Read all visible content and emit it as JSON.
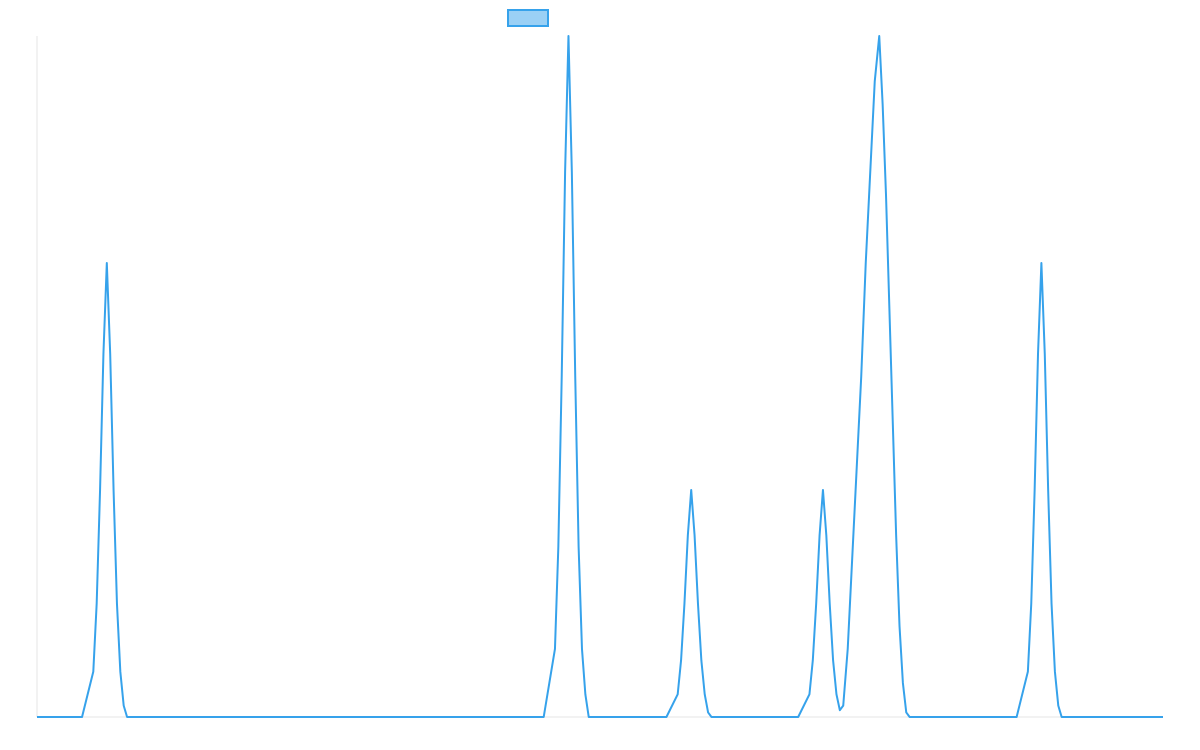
{
  "chart_data": {
    "type": "line",
    "title": "",
    "xlabel": "",
    "ylabel": "",
    "legend": {
      "placement": "top-center",
      "entries": [
        {
          "name": "",
          "color": "#36a2eb",
          "fill": "#9ad0f5"
        }
      ]
    },
    "grid": false,
    "xlim": [
      0,
      100
    ],
    "ylim": [
      0,
      3
    ],
    "series": [
      {
        "name": "",
        "color": "#36a2eb",
        "x": [
          0,
          4,
          5,
          5.3,
          5.6,
          5.9,
          6.2,
          6.5,
          6.8,
          7.1,
          7.4,
          7.7,
          8,
          9,
          45,
          46,
          46.3,
          46.6,
          46.9,
          47.2,
          47.5,
          47.8,
          48.1,
          48.4,
          48.7,
          49,
          50,
          55.9,
          56.9,
          57.2,
          57.5,
          57.8,
          58.1,
          58.4,
          58.7,
          59,
          59.3,
          59.6,
          59.9,
          60.9,
          67.6,
          68.6,
          68.9,
          69.2,
          69.5,
          69.8,
          70.1,
          70.4,
          70.7,
          71,
          71.3,
          71.6,
          72,
          72.4,
          72.8,
          73.2,
          73.6,
          74,
          74.4,
          74.8,
          75.1,
          75.4,
          75.7,
          76,
          76.3,
          76.6,
          76.9,
          77.2,
          77.5,
          77.8,
          78.1,
          78.4,
          78.8,
          79.2,
          79.6,
          80.6,
          87,
          88,
          88.3,
          88.6,
          88.9,
          89.2,
          89.5,
          89.8,
          90.1,
          90.4,
          90.7,
          91,
          92,
          100
        ],
        "values": [
          0,
          0,
          0.2,
          0.5,
          1,
          1.6,
          2,
          1.6,
          1,
          0.5,
          0.2,
          0.05,
          0,
          0,
          0,
          0.3,
          0.75,
          1.5,
          2.4,
          3,
          2.4,
          1.5,
          0.75,
          0.3,
          0.1,
          0,
          0,
          0,
          0.1,
          0.25,
          0.5,
          0.8,
          1,
          0.8,
          0.5,
          0.25,
          0.1,
          0.02,
          0,
          0,
          0,
          0.1,
          0.25,
          0.5,
          0.8,
          1,
          0.8,
          0.5,
          0.25,
          0.1,
          0.03,
          0.05,
          0.3,
          0.7,
          1.1,
          1.5,
          2.0,
          2.4,
          2.8,
          3,
          2.7,
          2.3,
          1.8,
          1.3,
          0.8,
          0.4,
          0.15,
          0.02,
          0,
          0,
          0,
          0,
          0,
          0,
          0,
          0,
          0,
          0.2,
          0.5,
          1,
          1.6,
          2,
          1.6,
          1,
          0.5,
          0.2,
          0.05,
          0,
          0,
          0
        ]
      }
    ]
  }
}
